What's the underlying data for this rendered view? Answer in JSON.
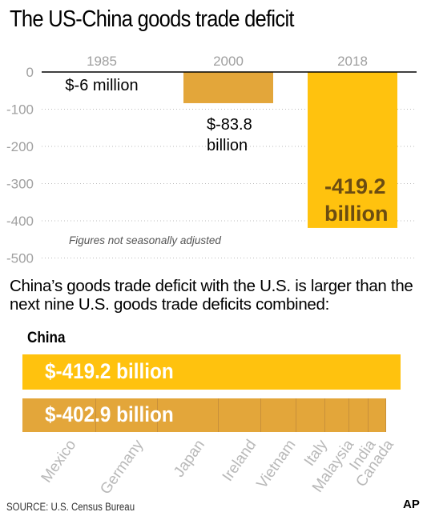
{
  "title": "The US-China goods trade deficit",
  "chart_data": [
    {
      "type": "bar",
      "categories": [
        "1985",
        "2000",
        "2018"
      ],
      "values": [
        -0.006,
        -83.8,
        -419.2
      ],
      "value_labels": [
        "$-6 million",
        "$-83.8 billion",
        "-419.2 billion"
      ],
      "ylim": [
        -500,
        0
      ],
      "yticks": [
        0,
        -100,
        -200,
        -300,
        -400,
        -500
      ],
      "grid": "dotted horizontal",
      "note": "Figures not seasonally adjusted",
      "colors": {
        "bar_2000": "#e3a63a",
        "bar_2018": "#ffc20e"
      }
    },
    {
      "type": "bar",
      "orientation": "horizontal-stacked",
      "china": {
        "label": "China",
        "value": -419.2,
        "value_label": "$-419.2 billion"
      },
      "others_total_label": "$-402.9 billion",
      "categories": [
        "Mexico",
        "Germany",
        "Japan",
        "Ireland",
        "Vietnam",
        "Italy",
        "Malaysia",
        "India",
        "Canada"
      ],
      "values": [
        -81.5,
        -68.3,
        -67.6,
        -46.8,
        -39.5,
        -31.6,
        -26.5,
        -21.3,
        -19.7
      ]
    }
  ],
  "subhead": "China’s goods trade deficit with the U.S. is larger than the next nine U.S. goods trade deficits combined:",
  "source": "SOURCE: U.S. Census Bureau",
  "logo": "AP",
  "colors": {
    "gold": "#ffc20e",
    "amber": "#e3a63a",
    "gray_text": "#a0a0a0"
  }
}
